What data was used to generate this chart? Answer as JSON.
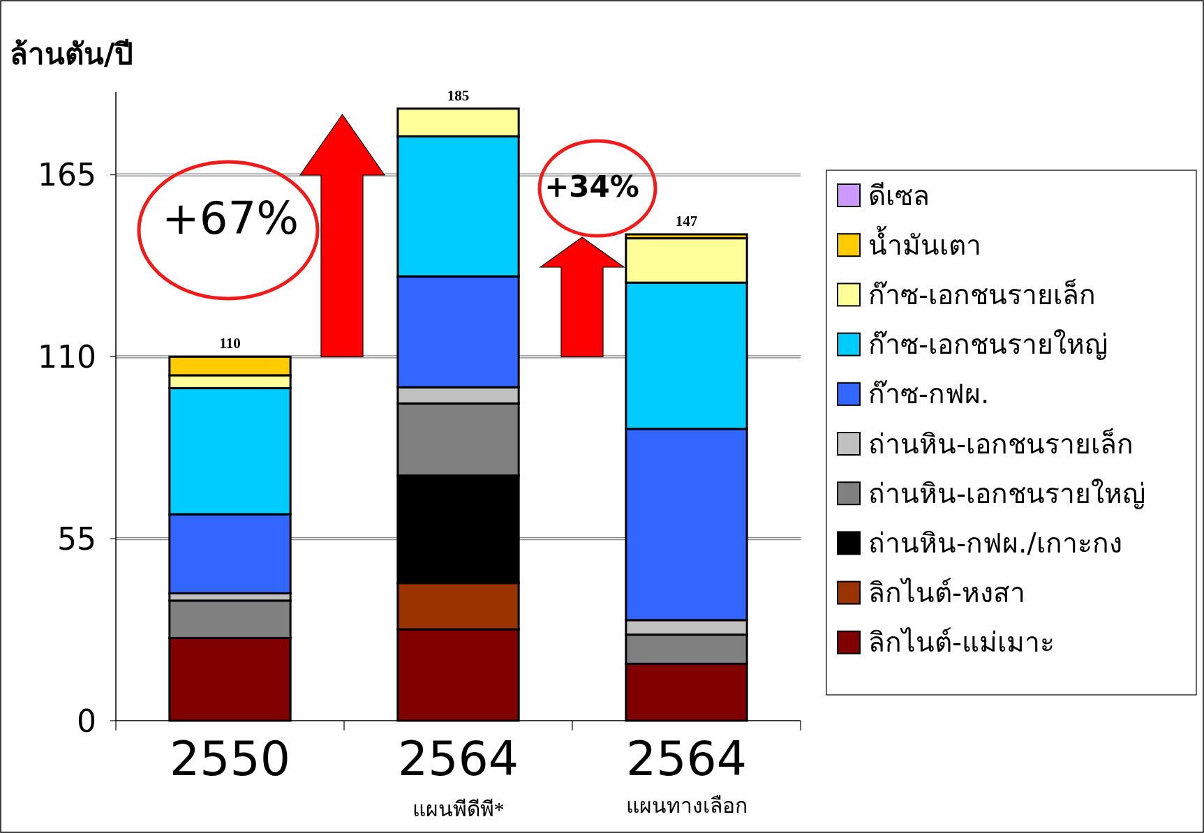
{
  "chart_data": {
    "type": "bar",
    "stacked": true,
    "ylabel": "ล้านตัน/ปี",
    "categories": [
      "2550",
      "2564",
      "2564"
    ],
    "ylim": [
      0,
      190
    ],
    "yticks": [
      0,
      55,
      110,
      165
    ],
    "grid": "y",
    "legend": "right",
    "totals": [
      "110",
      "185",
      "147"
    ],
    "annotations": [
      "+67%",
      "+34%",
      "แผนพีดีพี*",
      "แผนทางเลือก"
    ],
    "series": [
      {
        "name": "ลิกไนต์-แม่เมาะ",
        "color": "#800000",
        "values": [
          25,
          27.6,
          17.2
        ]
      },
      {
        "name": "ลิกไนต์-หงสา",
        "color": "#993300",
        "values": [
          0,
          14,
          0
        ]
      },
      {
        "name": "ถ่านหิน-กฟผ./เกาะกง",
        "color": "#000000",
        "values": [
          0,
          32.5,
          0
        ]
      },
      {
        "name": "ถ่านหิน-เอกชนรายใหญ่",
        "color": "#808080",
        "values": [
          11.3,
          21.8,
          8.8
        ]
      },
      {
        "name": "ถ่านหิน-เอกชนรายเล็ก",
        "color": "#c0c0c0",
        "values": [
          2.2,
          4.9,
          4.4
        ]
      },
      {
        "name": "ก๊าซ-กฟผ.",
        "color": "#3366ff",
        "values": [
          23.9,
          33.5,
          57.8
        ]
      },
      {
        "name": "ก๊าซ-เอกชนรายใหญ่",
        "color": "#00ccff",
        "values": [
          38.1,
          42.3,
          44.2
        ]
      },
      {
        "name": "ก๊าซ-เอกชนรายเล็ก",
        "color": "#ffff99",
        "values": [
          3.9,
          8.4,
          13.4
        ]
      },
      {
        "name": "น้ำมันเตา",
        "color": "#ffcc00",
        "values": [
          5.6,
          0,
          1.2
        ]
      },
      {
        "name": "ดีเซล",
        "color": "#cc99ff",
        "values": [
          0,
          0,
          0
        ]
      }
    ]
  }
}
